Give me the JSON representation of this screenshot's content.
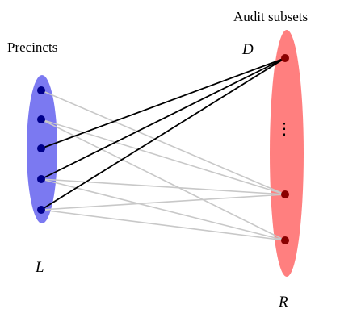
{
  "labels": {
    "precincts": "Precincts",
    "audit_subsets": "Audit subsets",
    "d": "D",
    "l": "L",
    "r": "R",
    "ellipsis": "⋮"
  },
  "colors": {
    "left_set": "#7b79f1",
    "right_set": "#ff7f7f",
    "left_node": "#00008b",
    "right_node": "#8b0000",
    "edge_to_d": "#000000",
    "edge_other": "#c8c8c8"
  },
  "left_nodes": [
    "p1",
    "p2",
    "p3",
    "p4",
    "p5"
  ],
  "right_nodes": [
    "d",
    "r1",
    "r2"
  ],
  "edges": [
    {
      "from": "p1",
      "to": "r1",
      "highlight": false
    },
    {
      "from": "p2",
      "to": "r1",
      "highlight": false
    },
    {
      "from": "p2",
      "to": "r2",
      "highlight": false
    },
    {
      "from": "p4",
      "to": "r1",
      "highlight": false
    },
    {
      "from": "p4",
      "to": "r2",
      "highlight": false
    },
    {
      "from": "p5",
      "to": "r1",
      "highlight": false
    },
    {
      "from": "p5",
      "to": "r2",
      "highlight": false
    },
    {
      "from": "p3",
      "to": "d",
      "highlight": true
    },
    {
      "from": "p4",
      "to": "d",
      "highlight": true
    },
    {
      "from": "p5",
      "to": "d",
      "highlight": true
    }
  ]
}
